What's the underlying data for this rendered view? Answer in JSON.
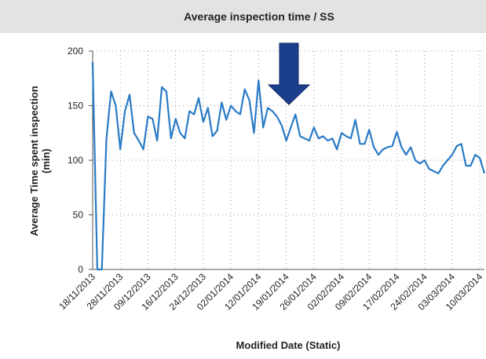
{
  "chart_data": {
    "type": "line",
    "title": "Average inspection time / SS",
    "ylabel": [
      "Average Time spent inspection",
      "(min)"
    ],
    "xlabel": "Modified Date (Static)",
    "categories": [
      "18/11/2013",
      null,
      null,
      null,
      null,
      null,
      "28/11/2013",
      null,
      null,
      null,
      null,
      null,
      "09/12/2013",
      null,
      null,
      null,
      null,
      null,
      "16/12/2013",
      null,
      null,
      null,
      null,
      null,
      "24/12/2013",
      null,
      null,
      null,
      null,
      null,
      "02/01/2014",
      null,
      null,
      null,
      null,
      null,
      "12/01/2014",
      null,
      null,
      null,
      null,
      null,
      "19/01/2014",
      null,
      null,
      null,
      null,
      null,
      "26/01/2014",
      null,
      null,
      null,
      null,
      null,
      "02/02/2014",
      null,
      null,
      null,
      null,
      null,
      "09/02/2014",
      null,
      null,
      null,
      null,
      null,
      "17/02/2014",
      null,
      null,
      null,
      null,
      null,
      "24/02/2014",
      null,
      null,
      null,
      null,
      null,
      "03/03/2014",
      null,
      null,
      null,
      null,
      null,
      "10/03/2014",
      null
    ],
    "series": [
      {
        "name": "Average inspection time",
        "color": "#2a7bc6",
        "values": [
          190,
          0,
          0,
          120,
          163,
          150,
          110,
          145,
          160,
          125,
          118,
          110,
          140,
          138,
          118,
          167,
          163,
          120,
          138,
          125,
          120,
          145,
          142,
          157,
          135,
          148,
          122,
          127,
          153,
          137,
          150,
          145,
          142,
          165,
          155,
          125,
          173,
          130,
          148,
          145,
          140,
          132,
          118,
          130,
          142,
          122,
          120,
          118,
          130,
          120,
          122,
          118,
          120,
          110,
          125,
          122,
          120,
          137,
          115,
          115,
          128,
          112,
          105,
          110,
          112,
          113,
          126,
          112,
          105,
          112,
          100,
          97,
          100,
          92,
          90,
          88,
          95,
          100,
          105,
          113,
          115,
          95,
          95,
          105,
          102,
          88
        ]
      }
    ],
    "ylim": [
      0,
      200
    ],
    "yticks": [
      0,
      50,
      100,
      150,
      200
    ],
    "grid": true
  }
}
